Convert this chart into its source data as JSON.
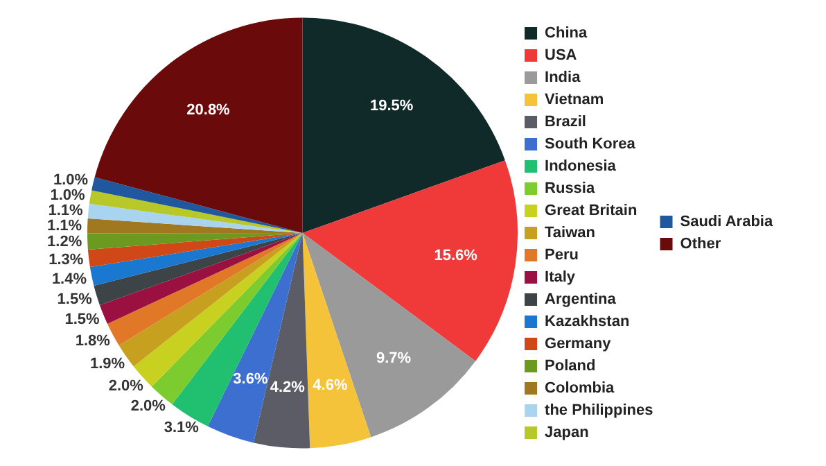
{
  "chart_data": {
    "type": "pie",
    "categories": [
      "China",
      "USA",
      "India",
      "Vietnam",
      "Brazil",
      "South Korea",
      "Indonesia",
      "Russia",
      "Great Britain",
      "Taiwan",
      "Peru",
      "Italy",
      "Argentina",
      "Kazakhstan",
      "Germany",
      "Poland",
      "Colombia",
      "the Philippines",
      "Japan",
      "Saudi Arabia",
      "Other"
    ],
    "values": [
      19.5,
      15.6,
      9.7,
      4.6,
      4.2,
      3.6,
      3.1,
      2.0,
      2.0,
      1.9,
      1.8,
      1.5,
      1.5,
      1.4,
      1.3,
      1.2,
      1.1,
      1.1,
      1.0,
      1.0,
      20.8
    ],
    "value_labels": [
      "19.5%",
      "15.6%",
      "9.7%",
      "4.6%",
      "4.2%",
      "3.6%",
      "3.1%",
      "2.0%",
      "2.0%",
      "1.9%",
      "1.8%",
      "1.5%",
      "1.5%",
      "1.4%",
      "1.3%",
      "1.2%",
      "1.1%",
      "1.1%",
      "1.0%",
      "1.0%",
      "20.8%"
    ],
    "colors": [
      "#0f2a28",
      "#f03a3a",
      "#9a9a9a",
      "#f5c33a",
      "#5c5c66",
      "#3c6fd0",
      "#20c070",
      "#7ccc30",
      "#c8d020",
      "#c8a020",
      "#e07828",
      "#9a1040",
      "#3c4448",
      "#1a78d0",
      "#d04818",
      "#6c9a20",
      "#a07820",
      "#a8d4f0",
      "#b8c828",
      "#2058a0",
      "#6a0a0a"
    ],
    "legend": "right"
  }
}
